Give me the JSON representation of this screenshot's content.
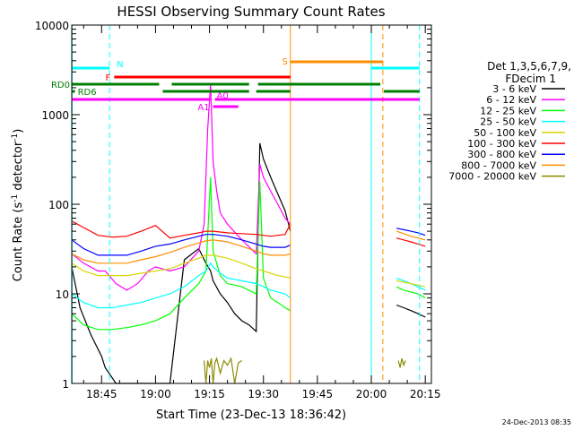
{
  "chart_data": {
    "type": "line",
    "title": "HESSI Observing Summary Count Rates",
    "xlabel": "Start Time (23-Dec-13 18:36:42)",
    "ylabel": "Count Rate (s",
    "ylabel_sup1": "-1",
    "ylabel_mid": " detector",
    "ylabel_sup2": "-1",
    "ylabel_end": ")",
    "y_scale": "log",
    "ylim": [
      1,
      10000
    ],
    "xlim_min": [
      36.7,
      136.7
    ],
    "x_ticks": [
      {
        "m": 45,
        "label": "18:45"
      },
      {
        "m": 60,
        "label": "19:00"
      },
      {
        "m": 75,
        "label": "19:15"
      },
      {
        "m": 90,
        "label": "19:30"
      },
      {
        "m": 105,
        "label": "19:45"
      },
      {
        "m": 120,
        "label": "20:00"
      },
      {
        "m": 135,
        "label": "20:15"
      }
    ],
    "y_ticks": [
      {
        "v": 1,
        "label": "1"
      },
      {
        "v": 10,
        "label": "10"
      },
      {
        "v": 100,
        "label": "100"
      },
      {
        "v": 1000,
        "label": "1000"
      },
      {
        "v": 10000,
        "label": "10000"
      }
    ],
    "legend": {
      "title1": "Det 1,3,5,6,7,9,",
      "title2": "FDecim 1",
      "placement": "right",
      "entries": [
        {
          "label": "3 - 6 keV",
          "color": "#000000"
        },
        {
          "label": "6 - 12 keV",
          "color": "#ff00ff"
        },
        {
          "label": "12 - 25 keV",
          "color": "#00ff00"
        },
        {
          "label": "25 - 50 keV",
          "color": "#00ffff"
        },
        {
          "label": "50 - 100 keV",
          "color": "#d7d700"
        },
        {
          "label": "100 - 300 keV",
          "color": "#ff0000"
        },
        {
          "label": "300 - 800 keV",
          "color": "#0000ff"
        },
        {
          "label": "800 - 7000 keV",
          "color": "#ff8c00"
        },
        {
          "label": "7000 - 20000 keV",
          "color": "#8b8b00"
        }
      ]
    },
    "series": [
      {
        "name": "3 - 6 keV",
        "color": "#000000",
        "x": [
          36.7,
          39,
          42,
          45,
          46,
          49,
          52,
          57,
          60,
          64,
          68,
          72,
          74,
          75.3,
          76,
          78,
          80,
          82,
          84,
          86,
          88,
          89,
          90,
          92,
          94,
          96,
          97.5
        ],
        "y": [
          20,
          7,
          3.5,
          2,
          1.5,
          1,
          1,
          1,
          1,
          1,
          24,
          32,
          22,
          18,
          14,
          10,
          8,
          6,
          5,
          4.5,
          3.8,
          480,
          320,
          200,
          130,
          85,
          50
        ]
      },
      {
        "name": "6 - 12 keV",
        "color": "#ff00ff",
        "x": [
          36.7,
          40,
          44,
          46,
          49,
          52,
          55,
          58,
          60,
          64,
          68,
          72,
          73.5,
          74.5,
          75.3,
          76,
          77,
          78,
          80,
          84,
          88,
          89,
          90,
          92,
          94,
          96,
          97.5
        ],
        "y": [
          28,
          22,
          18,
          18,
          13,
          11,
          13,
          18,
          20,
          18,
          20,
          30,
          60,
          700,
          2200,
          300,
          140,
          80,
          60,
          40,
          28,
          280,
          200,
          140,
          100,
          70,
          60
        ]
      },
      {
        "name": "12 - 25 keV",
        "color": "#00ff00",
        "x": [
          36.7,
          40,
          44,
          48,
          52,
          56,
          60,
          64,
          68,
          72,
          74,
          75.3,
          76,
          78,
          80,
          84,
          88,
          89,
          90,
          92,
          94,
          96,
          97.5
        ],
        "y": [
          6,
          4.5,
          4,
          4,
          4.2,
          4.5,
          5,
          6,
          9,
          13,
          18,
          200,
          30,
          16,
          13,
          12,
          10,
          180,
          15,
          9,
          8,
          7,
          6.5
        ]
      },
      {
        "name": "25 - 50 keV",
        "color": "#00ffff",
        "x": [
          36.7,
          40,
          44,
          48,
          52,
          56,
          60,
          64,
          68,
          72,
          74,
          75.3,
          76,
          78,
          80,
          84,
          88,
          90,
          92,
          94,
          96,
          97.5
        ],
        "y": [
          10,
          8,
          7,
          7,
          7.5,
          8,
          9,
          10,
          12,
          16,
          18,
          22,
          20,
          17,
          15,
          14,
          13,
          12,
          11,
          10.5,
          10,
          9
        ]
      },
      {
        "name": "50 - 100 keV",
        "color": "#d7d700",
        "x": [
          36.7,
          40,
          44,
          48,
          52,
          56,
          60,
          64,
          68,
          72,
          74,
          76,
          78,
          80,
          84,
          88,
          90,
          92,
          94,
          96,
          97.5
        ],
        "y": [
          22,
          18,
          16,
          16,
          16,
          17,
          18,
          19,
          22,
          25,
          27,
          27,
          26,
          25,
          22,
          19,
          18,
          17,
          16,
          15.5,
          15
        ]
      },
      {
        "name": "100 - 300 keV",
        "color": "#ff0000",
        "x": [
          36.7,
          40,
          44,
          48,
          52,
          56,
          60,
          64,
          68,
          72,
          74,
          76,
          78,
          80,
          84,
          88,
          90,
          92,
          94,
          96,
          97.5
        ],
        "y": [
          65,
          55,
          45,
          43,
          44,
          50,
          58,
          42,
          45,
          48,
          50,
          50,
          49,
          48,
          47,
          46,
          45,
          44,
          45,
          46,
          60
        ]
      },
      {
        "name": "300 - 800 keV",
        "color": "#0000ff",
        "x": [
          36.7,
          40,
          44,
          48,
          52,
          56,
          60,
          64,
          68,
          72,
          74,
          76,
          78,
          80,
          84,
          88,
          90,
          92,
          94,
          96,
          97.5
        ],
        "y": [
          40,
          32,
          27,
          27,
          27,
          30,
          34,
          36,
          40,
          44,
          46,
          46,
          45,
          44,
          40,
          36,
          34,
          33,
          33,
          33,
          35
        ]
      },
      {
        "name": "800 - 7000 keV",
        "color": "#ff8c00",
        "x": [
          36.7,
          40,
          44,
          48,
          52,
          56,
          60,
          64,
          68,
          72,
          74,
          76,
          78,
          80,
          84,
          88,
          90,
          92,
          94,
          96,
          97.5
        ],
        "y": [
          28,
          24,
          22,
          22,
          22,
          24,
          26,
          29,
          33,
          37,
          39,
          40,
          39,
          38,
          34,
          30,
          28,
          27,
          27,
          27,
          28
        ]
      },
      {
        "name": "7000 - 20000 keV",
        "color": "#8b8b00",
        "x": [
          73.5,
          74,
          74.5,
          75,
          75.5,
          76,
          76.5,
          77,
          78,
          79,
          80,
          81,
          82,
          83,
          84
        ],
        "y": [
          1.8,
          1,
          1.8,
          1.5,
          1.9,
          1,
          1.7,
          1.9,
          1.3,
          1.8,
          1.6,
          1.9,
          1,
          1.7,
          1.8
        ]
      },
      {
        "name": "3 - 6 keV",
        "color": "#000000",
        "x": [
          127,
          129,
          131,
          133,
          135
        ],
        "y": [
          7.5,
          7,
          6.5,
          6,
          5.5
        ]
      },
      {
        "name": "12 - 25 keV",
        "color": "#00ff00",
        "x": [
          127,
          129,
          131,
          133,
          135
        ],
        "y": [
          12,
          11,
          10.5,
          10,
          9
        ]
      },
      {
        "name": "25 - 50 keV",
        "color": "#00ffff",
        "x": [
          127,
          129,
          131,
          133,
          135
        ],
        "y": [
          15,
          14,
          13,
          12,
          11
        ]
      },
      {
        "name": "50 - 100 keV",
        "color": "#d7d700",
        "x": [
          127,
          129,
          131,
          133,
          135
        ],
        "y": [
          14,
          13.5,
          13,
          12.5,
          12
        ]
      },
      {
        "name": "100 - 300 keV",
        "color": "#ff0000",
        "x": [
          127,
          129,
          131,
          133,
          135
        ],
        "y": [
          42,
          40,
          38,
          36,
          34
        ]
      },
      {
        "name": "300 - 800 keV",
        "color": "#0000ff",
        "x": [
          127,
          129,
          131,
          133,
          135
        ],
        "y": [
          54,
          52,
          50,
          48,
          45
        ]
      },
      {
        "name": "800 - 7000 keV",
        "color": "#ff8c00",
        "x": [
          127,
          129,
          131,
          133,
          135
        ],
        "y": [
          50,
          47,
          44,
          42,
          40
        ]
      },
      {
        "name": "7000 - 20000 keV",
        "color": "#8b8b00",
        "x": [
          127.5,
          128,
          128.5,
          129,
          129.5
        ],
        "y": [
          1.8,
          1.5,
          1.9,
          1.6,
          1.8
        ]
      }
    ],
    "vlines": [
      {
        "m": 36.8,
        "color": "#00ffff",
        "style": "solid"
      },
      {
        "m": 47.2,
        "color": "#00ffff",
        "style": "dashed"
      },
      {
        "m": 97.5,
        "color": "#ff8c00",
        "style": "solid"
      },
      {
        "m": 120.0,
        "color": "#00ffff",
        "style": "solid"
      },
      {
        "m": 123.2,
        "color": "#ff8c00",
        "style": "dashed"
      },
      {
        "m": 133.4,
        "color": "#00ffff",
        "style": "dashed"
      }
    ],
    "flags": [
      {
        "label": "N",
        "color": "#00ffff",
        "row": 48,
        "segments": [
          [
            36.7,
            47.2
          ],
          [
            120.0,
            133.4
          ]
        ]
      },
      {
        "label": "S",
        "color": "#ff8c00",
        "row": 41,
        "segments": [
          [
            97.5,
            123.2
          ]
        ]
      },
      {
        "label": "F",
        "color": "#ff0000",
        "row": 58,
        "segments": [
          [
            48.5,
            97.5
          ]
        ]
      },
      {
        "label": "RD0",
        "color": "#008000",
        "row": 66,
        "segments": [
          [
            36.7,
            61
          ],
          [
            64.5,
            86
          ],
          [
            88.5,
            122.5
          ]
        ]
      },
      {
        "label": "RD6",
        "color": "#008000",
        "row": 74,
        "segments": [
          [
            36.7,
            37.6
          ],
          [
            62,
            86
          ],
          [
            88,
            97.5
          ],
          [
            123.5,
            133.4
          ]
        ]
      },
      {
        "label": "A0",
        "color": "#ff00ff",
        "row": 83,
        "segments": [
          [
            36.7,
            75.3
          ],
          [
            76.5,
            133.4
          ]
        ]
      },
      {
        "label": "A1",
        "color": "#ff00ff",
        "row": 91,
        "segments": [
          [
            76,
            83
          ]
        ]
      }
    ],
    "timestamp": "24-Dec-2013 08:35"
  }
}
